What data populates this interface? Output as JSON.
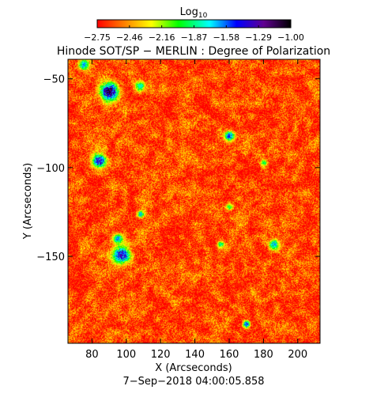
{
  "chart_data": {
    "type": "heatmap",
    "title": "Hinode SOT/SP − MERLIN : Degree of Polarization",
    "colorbar": {
      "label_base": "Log",
      "label_sub": "10",
      "ticks": [
        "−2.75",
        "−2.46",
        "−2.16",
        "−1.87",
        "−1.58",
        "−1.29",
        "−1.00"
      ],
      "range": [
        -2.75,
        -1.0
      ],
      "colormap": "rainbow (red → orange → yellow → green → cyan → blue → purple → black)"
    },
    "xlabel": "X (Arcseconds)",
    "ylabel": "Y (Arcseconds)",
    "xlim": [
      66,
      213
    ],
    "ylim": [
      -199,
      -39
    ],
    "x_ticks": [
      80,
      100,
      120,
      140,
      160,
      180,
      200
    ],
    "x_tick_labels": [
      "80",
      "100",
      "120",
      "140",
      "160",
      "180",
      "200"
    ],
    "y_ticks": [
      -50,
      -100,
      -150
    ],
    "y_tick_labels": [
      "−50",
      "−100",
      "−150"
    ],
    "grid": false,
    "background_level": -2.62,
    "strong_patches": [
      {
        "x": 90,
        "y": -57,
        "peak": -1.05,
        "radius": 5
      },
      {
        "x": 84,
        "y": -96,
        "peak": -1.3,
        "radius": 4
      },
      {
        "x": 97,
        "y": -149,
        "peak": -1.3,
        "radius": 5
      },
      {
        "x": 160,
        "y": -82,
        "peak": -1.45,
        "radius": 3
      },
      {
        "x": 186,
        "y": -143,
        "peak": -1.6,
        "radius": 3
      },
      {
        "x": 170,
        "y": -188,
        "peak": -1.4,
        "radius": 2
      },
      {
        "x": 75,
        "y": -42,
        "peak": -1.6,
        "radius": 3
      },
      {
        "x": 108,
        "y": -54,
        "peak": -1.8,
        "radius": 3
      },
      {
        "x": 108,
        "y": -126,
        "peak": -1.6,
        "radius": 2
      },
      {
        "x": 95,
        "y": -140,
        "peak": -1.6,
        "radius": 3
      },
      {
        "x": 155,
        "y": -143,
        "peak": -1.8,
        "radius": 2
      },
      {
        "x": 160,
        "y": -122,
        "peak": -1.9,
        "radius": 2
      },
      {
        "x": 180,
        "y": -97,
        "peak": -1.9,
        "radius": 2
      }
    ],
    "date_label": "7−Sep−2018 04:00:05.858"
  }
}
